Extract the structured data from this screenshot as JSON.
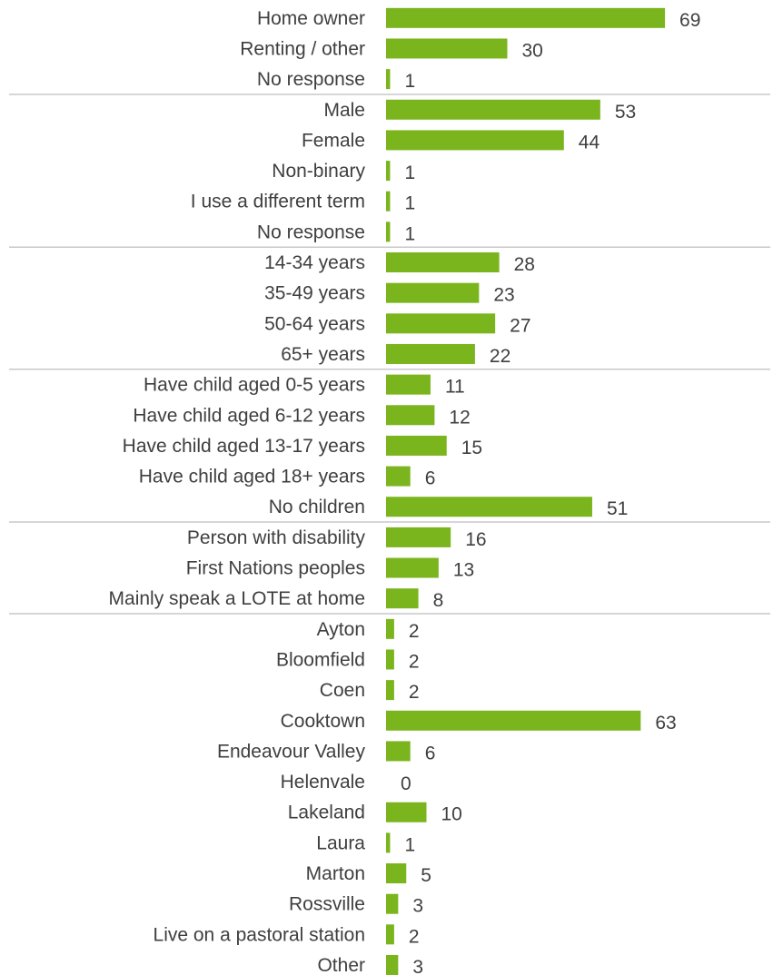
{
  "chart_data": {
    "type": "bar",
    "orientation": "horizontal",
    "bar_color": "#7ab51d",
    "xlim": [
      0,
      80
    ],
    "grid": false,
    "categories": [
      "Home owner",
      "Renting / other",
      "No response",
      "Male",
      "Female",
      "Non-binary",
      "I use a different term",
      "No response",
      "14-34 years",
      "35-49 years",
      "50-64 years",
      "65+ years",
      "Have child aged 0-5 years",
      "Have child aged 6-12 years",
      "Have child aged 13-17 years",
      "Have child aged 18+ years",
      "No children",
      "Person with disability",
      "First Nations peoples",
      "Mainly speak a LOTE at home",
      "Ayton",
      "Bloomfield",
      "Coen",
      "Cooktown",
      "Endeavour Valley",
      "Helenvale",
      "Lakeland",
      "Laura",
      "Marton",
      "Rossville",
      "Live on a pastoral station",
      "Other"
    ],
    "values": [
      69,
      30,
      1,
      53,
      44,
      1,
      1,
      1,
      28,
      23,
      27,
      22,
      11,
      12,
      15,
      6,
      51,
      16,
      13,
      8,
      2,
      2,
      2,
      63,
      6,
      0,
      10,
      1,
      5,
      3,
      2,
      3
    ],
    "groups": [
      {
        "start": 0,
        "count": 3
      },
      {
        "start": 3,
        "count": 5
      },
      {
        "start": 8,
        "count": 4
      },
      {
        "start": 12,
        "count": 5
      },
      {
        "start": 17,
        "count": 3
      },
      {
        "start": 20,
        "count": 12
      }
    ]
  }
}
